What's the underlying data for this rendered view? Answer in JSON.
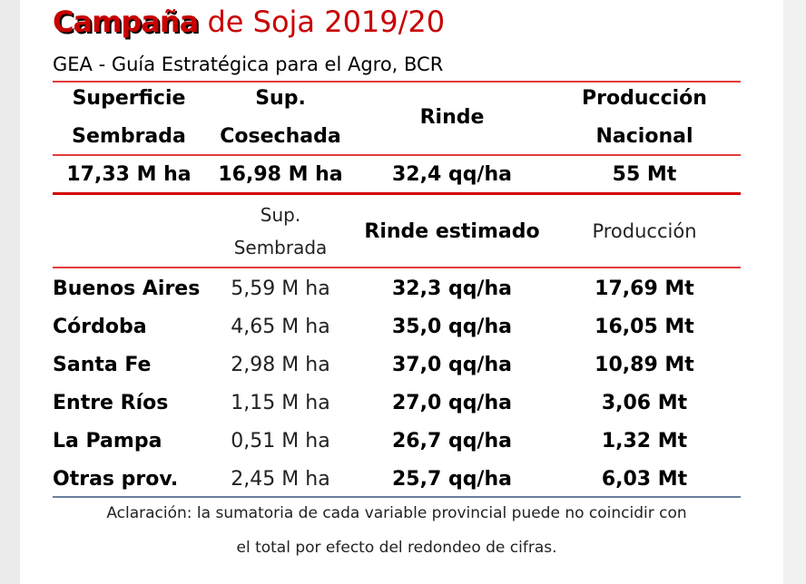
{
  "title": {
    "brand": "Campaña",
    "rest": "de Soja 2019/20"
  },
  "subtitle": "GEA - Guía Estratégica para el Agro, BCR",
  "national_header": {
    "col1": [
      "Superficie",
      "Sembrada"
    ],
    "col2": [
      "Sup.",
      "Cosechada"
    ],
    "col3": "Rinde",
    "col4": [
      "Producción",
      "Nacional"
    ]
  },
  "national_values": {
    "col1": "17,33 M ha",
    "col2": "16,98 M ha",
    "col3": "32,4 qq/ha",
    "col4": "55 Mt"
  },
  "province_header": {
    "col2": [
      "Sup.",
      "Sembrada"
    ],
    "col3": "Rinde estimado",
    "col4": "Producción"
  },
  "provinces": [
    {
      "name": "Buenos Aires",
      "area": "5,59 M ha",
      "yield": "32,3 qq/ha",
      "production": "17,69 Mt"
    },
    {
      "name": "Córdoba",
      "area": "4,65 M ha",
      "yield": "35,0 qq/ha",
      "production": "16,05 Mt"
    },
    {
      "name": "Santa Fe",
      "area": "2,98 M ha",
      "yield": "37,0 qq/ha",
      "production": "10,89 Mt"
    },
    {
      "name": "Entre Ríos",
      "area": "1,15 M ha",
      "yield": "27,0 qq/ha",
      "production": "3,06 Mt"
    },
    {
      "name": "La Pampa",
      "area": "0,51 M ha",
      "yield": "26,7 qq/ha",
      "production": "1,32 Mt"
    },
    {
      "name": "Otras prov.",
      "area": "2,45 M ha",
      "yield": "25,7 qq/ha",
      "production": "6,03 Mt"
    }
  ],
  "note": [
    "Aclaración: la sumatoria de cada variable provincial puede no coincidir con",
    "el total por efecto del redondeo de cifras."
  ],
  "colors": {
    "title": "#c80000",
    "rule_red": "#d20000",
    "rule_blue": "#6b7f9e"
  }
}
